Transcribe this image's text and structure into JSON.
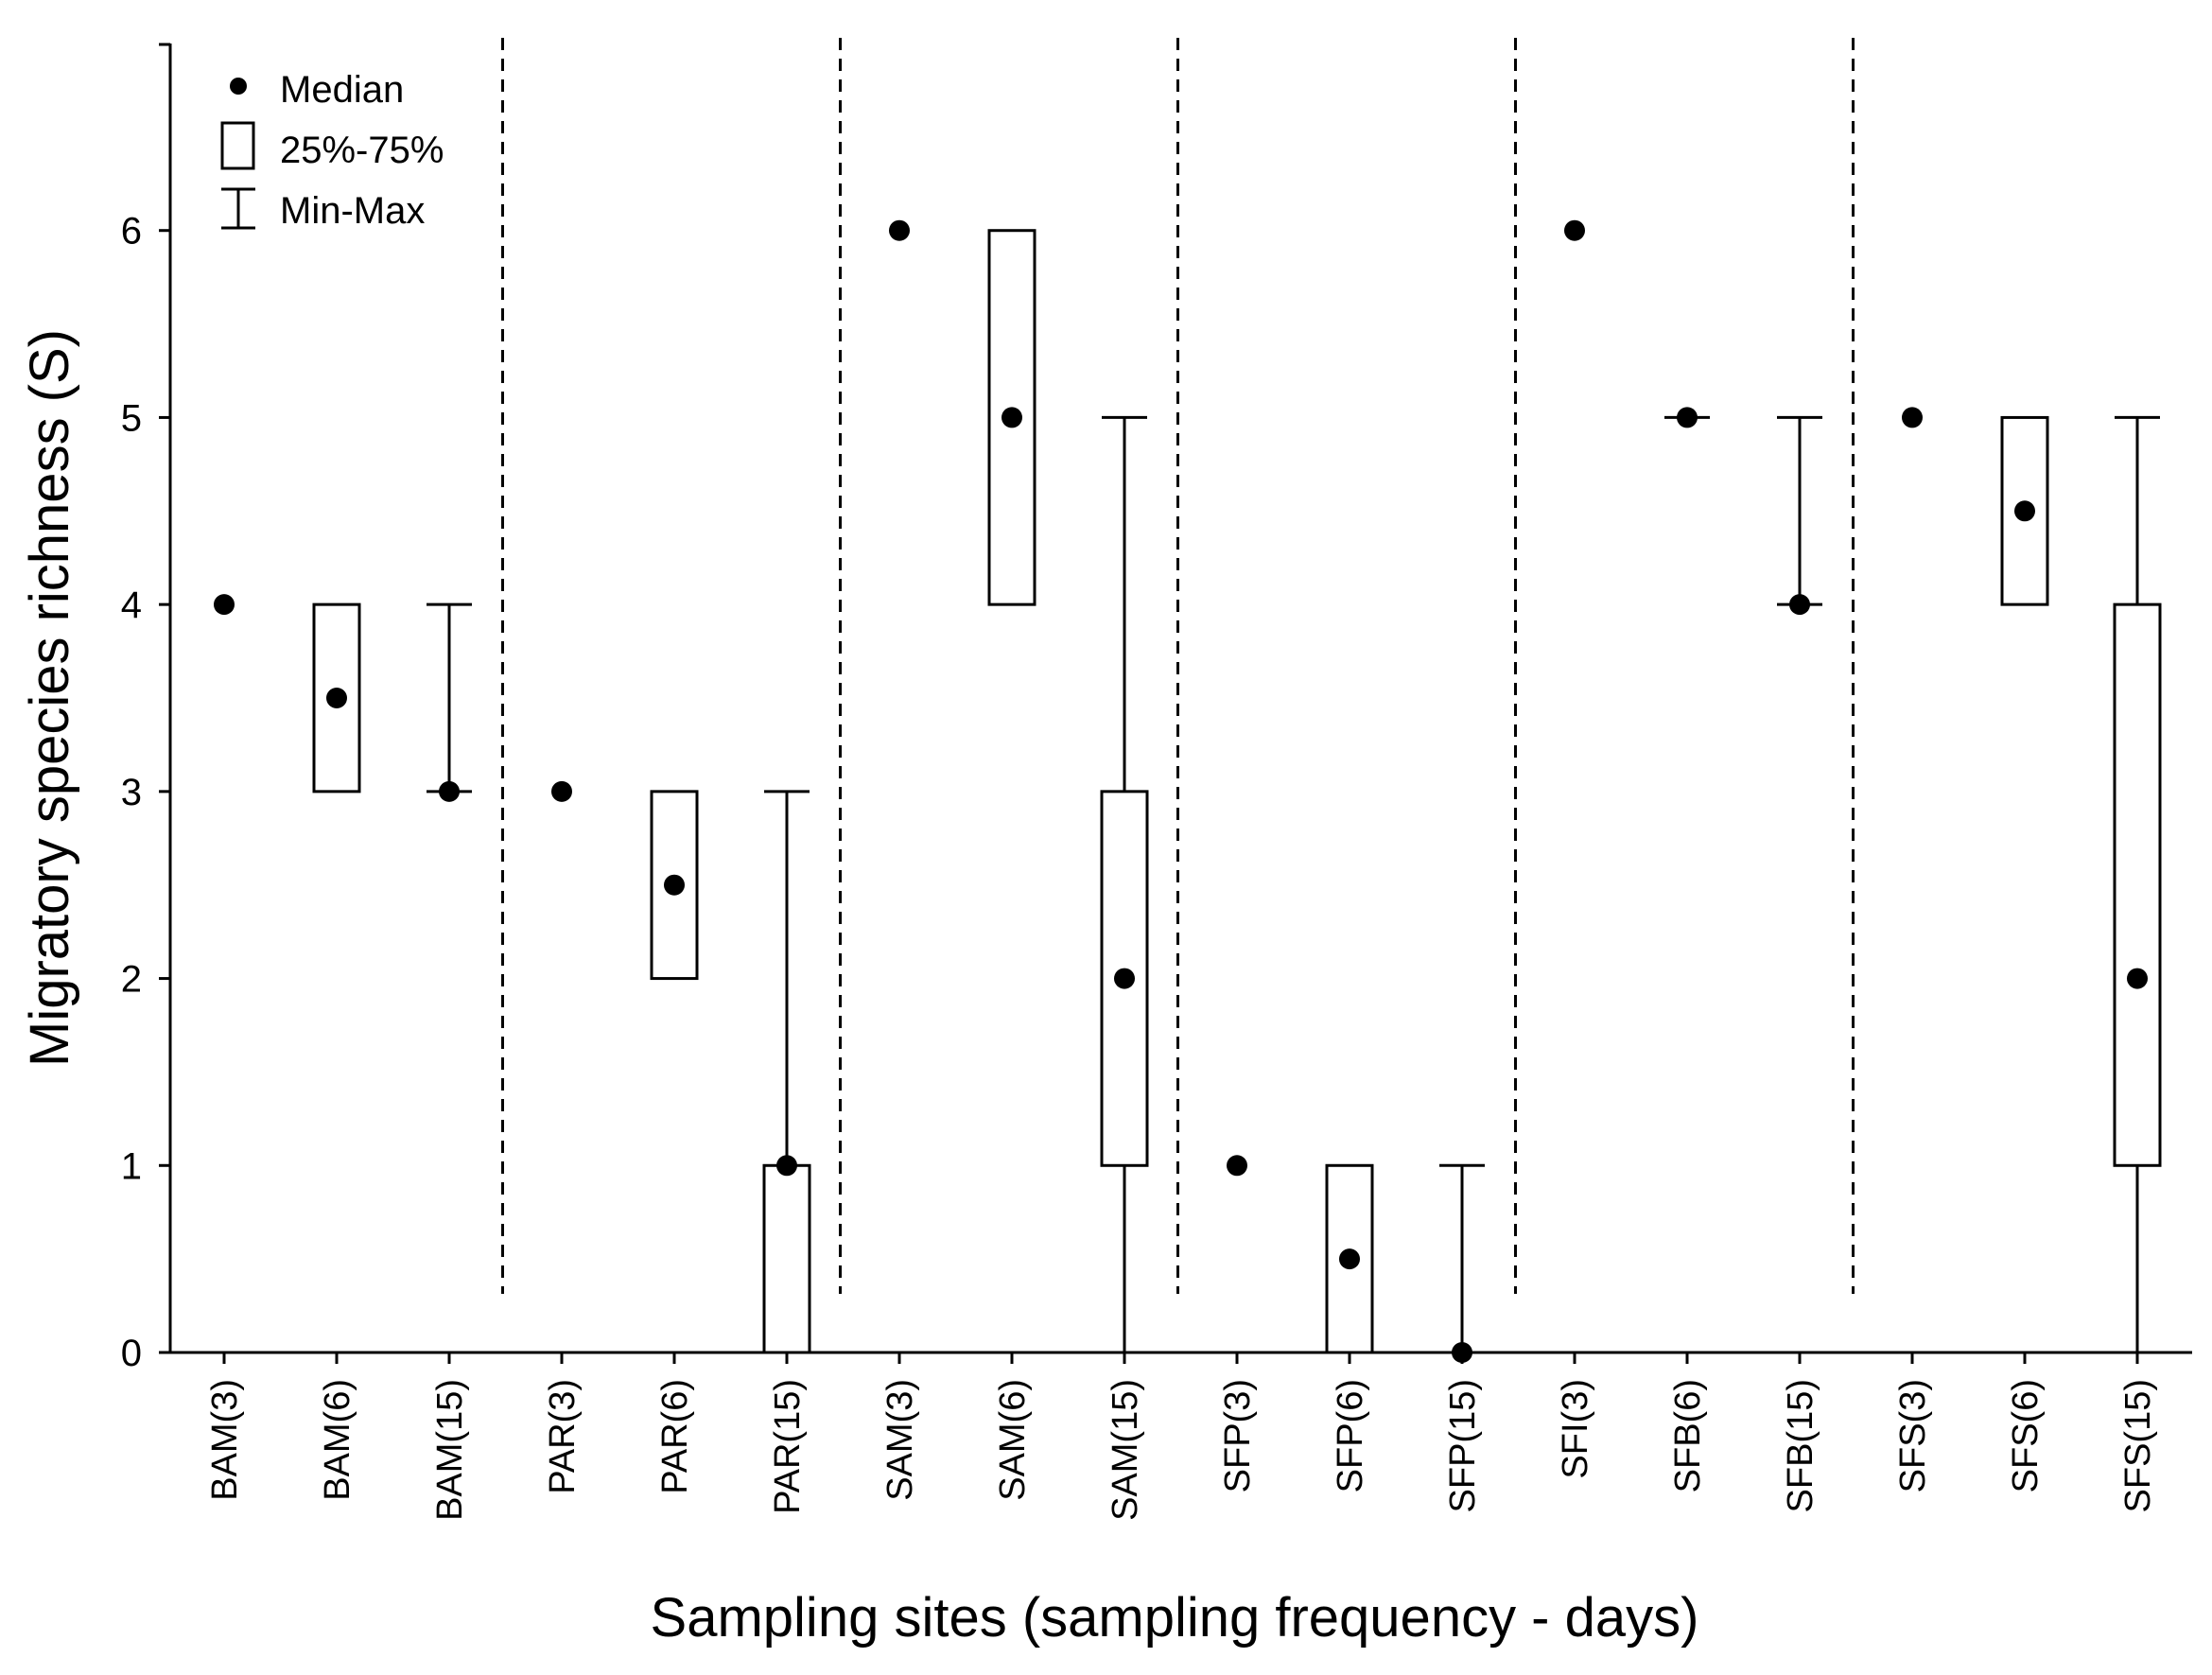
{
  "chart_data": {
    "type": "boxplot",
    "title": "",
    "xlabel": "Sampling sites (sampling frequency - days)",
    "ylabel": "Migratory species richness (S)",
    "ylim": [
      0,
      7
    ],
    "yticks": [
      0,
      1,
      2,
      3,
      4,
      5,
      6
    ],
    "grid": false,
    "legend_position": "top-left",
    "legend": {
      "median": "Median",
      "box": "25%-75%",
      "whisker": "Min-Max"
    },
    "group_separators_after": [
      3,
      6,
      9,
      12,
      15
    ],
    "categories": [
      "BAM(3)",
      "BAM(6)",
      "BAM(15)",
      "PAR(3)",
      "PAR(6)",
      "PAR(15)",
      "SAM(3)",
      "SAM(6)",
      "SAM(15)",
      "SFP(3)",
      "SFP(6)",
      "SFP(15)",
      "SFI(3)",
      "SFB(6)",
      "SFB(15)",
      "SFS(3)",
      "SFS(6)",
      "SFS(15)"
    ],
    "boxes": [
      {
        "median": 4,
        "q1": 4,
        "q3": 4,
        "min": 4,
        "max": 4
      },
      {
        "median": 3.5,
        "q1": 3,
        "q3": 4,
        "min": 3,
        "max": 4
      },
      {
        "median": 3,
        "q1": 3,
        "q3": 3,
        "min": 3,
        "max": 4
      },
      {
        "median": 3,
        "q1": 3,
        "q3": 3,
        "min": 3,
        "max": 3
      },
      {
        "median": 2.5,
        "q1": 2,
        "q3": 3,
        "min": 2,
        "max": 3
      },
      {
        "median": 1,
        "q1": 0,
        "q3": 1,
        "min": 0,
        "max": 3
      },
      {
        "median": 6,
        "q1": 6,
        "q3": 6,
        "min": 6,
        "max": 6
      },
      {
        "median": 5,
        "q1": 4,
        "q3": 6,
        "min": 4,
        "max": 6
      },
      {
        "median": 2,
        "q1": 1,
        "q3": 3,
        "min": 0,
        "max": 5
      },
      {
        "median": 1,
        "q1": 1,
        "q3": 1,
        "min": 1,
        "max": 1
      },
      {
        "median": 0.5,
        "q1": 0,
        "q3": 1,
        "min": 0,
        "max": 1
      },
      {
        "median": 0,
        "q1": 0,
        "q3": 0,
        "min": 0,
        "max": 1
      },
      {
        "median": 6,
        "q1": 6,
        "q3": 6,
        "min": 6,
        "max": 6
      },
      {
        "median": 5,
        "q1": 5,
        "q3": 5,
        "min": 5,
        "max": 5
      },
      {
        "median": 4,
        "q1": 4,
        "q3": 4,
        "min": 4,
        "max": 5
      },
      {
        "median": 5,
        "q1": 5,
        "q3": 5,
        "min": 5,
        "max": 5
      },
      {
        "median": 4.5,
        "q1": 4,
        "q3": 5,
        "min": 4,
        "max": 5
      },
      {
        "median": 2,
        "q1": 1,
        "q3": 4,
        "min": 0,
        "max": 5
      }
    ]
  }
}
